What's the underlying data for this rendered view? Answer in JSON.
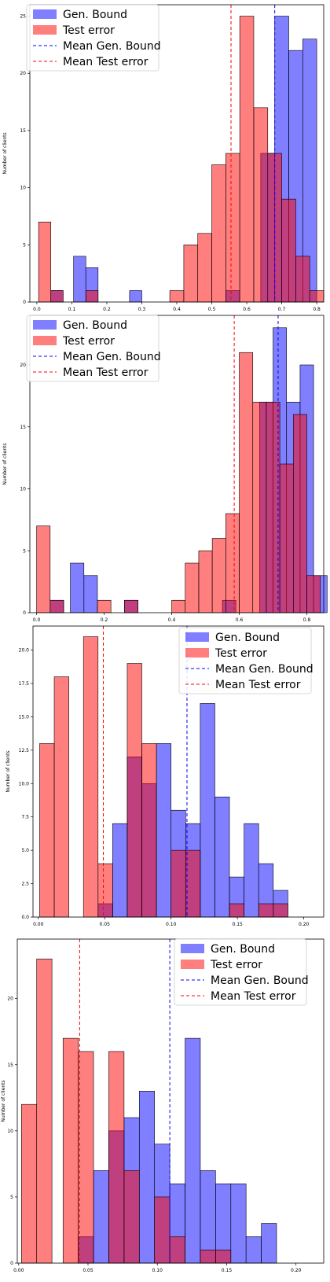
{
  "colors": {
    "gen_bound": "#0000ff",
    "test_error": "#ff0000",
    "overlap": "#aa2255"
  },
  "chart_data": [
    {
      "type": "histogram",
      "ylabel": "Number of clients",
      "xlim": [
        -0.02,
        0.82
      ],
      "ylim": [
        0,
        26
      ],
      "xticks": [
        0.0,
        0.1,
        0.2,
        0.3,
        0.4,
        0.5,
        0.6,
        0.7,
        0.8
      ],
      "xtick_labels": [
        "0.0",
        "0.1",
        "0.2",
        "0.3",
        "0.4",
        "0.5",
        "0.6",
        "0.7",
        "0.8"
      ],
      "yticks": [
        0,
        5,
        10,
        15,
        20,
        25
      ],
      "ytick_labels": [
        "0",
        "5",
        "10",
        "15",
        "20",
        "25"
      ],
      "legend": [
        "Gen. Bound",
        "Test error",
        "Mean Gen. Bound",
        "Mean Test error"
      ],
      "legend_position": "top-left",
      "series": [
        {
          "name": "Gen. Bound",
          "bins": [
            [
              0.04,
              0.075,
              1
            ],
            [
              0.105,
              0.14,
              4
            ],
            [
              0.14,
              0.175,
              3
            ],
            [
              0.265,
              0.3,
              1
            ],
            [
              0.54,
              0.58,
              1
            ],
            [
              0.64,
              0.68,
              13
            ],
            [
              0.68,
              0.72,
              25
            ],
            [
              0.72,
              0.76,
              22
            ],
            [
              0.76,
              0.8,
              23
            ]
          ]
        },
        {
          "name": "Test error",
          "bins": [
            [
              0.005,
              0.04,
              7
            ],
            [
              0.04,
              0.075,
              1
            ],
            [
              0.14,
              0.175,
              1
            ],
            [
              0.38,
              0.42,
              1
            ],
            [
              0.42,
              0.46,
              5
            ],
            [
              0.46,
              0.5,
              6
            ],
            [
              0.5,
              0.54,
              12
            ],
            [
              0.54,
              0.58,
              13
            ],
            [
              0.58,
              0.62,
              25
            ],
            [
              0.62,
              0.66,
              17
            ],
            [
              0.66,
              0.7,
              13
            ],
            [
              0.7,
              0.74,
              9
            ],
            [
              0.74,
              0.78,
              4
            ],
            [
              0.78,
              0.82,
              1
            ]
          ]
        }
      ],
      "mean_lines": {
        "Mean Gen. Bound": 0.68,
        "Mean Test error": 0.555
      }
    },
    {
      "type": "histogram",
      "ylabel": "Number of clients",
      "xlim": [
        -0.02,
        0.85
      ],
      "ylim": [
        0,
        24
      ],
      "xticks": [
        0.0,
        0.2,
        0.4,
        0.6,
        0.8
      ],
      "xtick_labels": [
        "0.0",
        "0.2",
        "0.4",
        "0.6",
        "0.8"
      ],
      "yticks": [
        0,
        5,
        10,
        15,
        20
      ],
      "ytick_labels": [
        "0",
        "5",
        "10",
        "15",
        "20"
      ],
      "legend": [
        "Gen. Bound",
        "Test error",
        "Mean Gen. Bound",
        "Mean Test error"
      ],
      "legend_position": "top-left",
      "series": [
        {
          "name": "Gen. Bound",
          "bins": [
            [
              0.04,
              0.08,
              1
            ],
            [
              0.1,
              0.14,
              4
            ],
            [
              0.14,
              0.18,
              3
            ],
            [
              0.26,
              0.3,
              1
            ],
            [
              0.55,
              0.59,
              1
            ],
            [
              0.66,
              0.7,
              17
            ],
            [
              0.7,
              0.74,
              23
            ],
            [
              0.74,
              0.78,
              17
            ],
            [
              0.78,
              0.82,
              20
            ],
            [
              0.82,
              0.86,
              3
            ]
          ]
        },
        {
          "name": "Test error",
          "bins": [
            [
              0.0,
              0.04,
              7
            ],
            [
              0.04,
              0.08,
              1
            ],
            [
              0.18,
              0.22,
              1
            ],
            [
              0.26,
              0.3,
              1
            ],
            [
              0.4,
              0.44,
              1
            ],
            [
              0.44,
              0.48,
              4
            ],
            [
              0.48,
              0.52,
              5
            ],
            [
              0.52,
              0.56,
              6
            ],
            [
              0.56,
              0.6,
              8
            ],
            [
              0.6,
              0.64,
              21
            ],
            [
              0.64,
              0.68,
              17
            ],
            [
              0.68,
              0.72,
              17
            ],
            [
              0.72,
              0.76,
              12
            ],
            [
              0.76,
              0.8,
              16
            ],
            [
              0.8,
              0.84,
              3
            ]
          ]
        }
      ],
      "mean_lines": {
        "Mean Gen. Bound": 0.715,
        "Mean Test error": 0.585
      }
    },
    {
      "type": "histogram",
      "ylabel": "Number of clients",
      "xlim": [
        -0.004,
        0.215
      ],
      "ylim": [
        0,
        21.8
      ],
      "xticks": [
        0.0,
        0.05,
        0.1,
        0.15,
        0.2
      ],
      "xtick_labels": [
        "0.00",
        "0.05",
        "0.10",
        "0.15",
        "0.20"
      ],
      "yticks": [
        0,
        2.5,
        5.0,
        7.5,
        10.0,
        12.5,
        15.0,
        17.5,
        20.0
      ],
      "ytick_labels": [
        "0.0",
        "2.5",
        "5.0",
        "7.5",
        "10.0",
        "12.5",
        "15.0",
        "17.5",
        "20.0"
      ],
      "legend": [
        "Gen. Bound",
        "Test error",
        "Mean Gen. Bound",
        "Mean Test error"
      ],
      "legend_position": "top-right",
      "series": [
        {
          "name": "Gen. Bound",
          "bins": [
            [
              0.045,
              0.056,
              1
            ],
            [
              0.056,
              0.067,
              7
            ],
            [
              0.067,
              0.078,
              12
            ],
            [
              0.078,
              0.089,
              10
            ],
            [
              0.089,
              0.1,
              13
            ],
            [
              0.1,
              0.111,
              8
            ],
            [
              0.111,
              0.122,
              7
            ],
            [
              0.122,
              0.133,
              16
            ],
            [
              0.133,
              0.144,
              9
            ],
            [
              0.144,
              0.155,
              3
            ],
            [
              0.155,
              0.166,
              7
            ],
            [
              0.166,
              0.177,
              4
            ],
            [
              0.177,
              0.188,
              2
            ]
          ]
        },
        {
          "name": "Test error",
          "bins": [
            [
              0.001,
              0.012,
              13
            ],
            [
              0.012,
              0.023,
              18
            ],
            [
              0.034,
              0.045,
              21
            ],
            [
              0.045,
              0.056,
              4
            ],
            [
              0.067,
              0.078,
              19
            ],
            [
              0.078,
              0.089,
              13
            ],
            [
              0.1,
              0.111,
              5
            ],
            [
              0.111,
              0.122,
              5
            ],
            [
              0.144,
              0.155,
              1
            ],
            [
              0.166,
              0.177,
              1
            ],
            [
              0.177,
              0.188,
              1
            ]
          ]
        }
      ],
      "mean_lines": {
        "Mean Gen. Bound": 0.112,
        "Mean Test error": 0.049
      }
    },
    {
      "type": "histogram",
      "ylabel": "Number of clients",
      "xlim": [
        -0.001,
        0.22
      ],
      "ylim": [
        0,
        24.5
      ],
      "xticks": [
        0.0,
        0.05,
        0.1,
        0.15,
        0.2
      ],
      "xtick_labels": [
        "0.00",
        "0.05",
        "0.10",
        "0.15",
        "0.20"
      ],
      "yticks": [
        0,
        5,
        10,
        15,
        20
      ],
      "ytick_labels": [
        "0",
        "5",
        "10",
        "15",
        "20"
      ],
      "legend": [
        "Gen. Bound",
        "Test error",
        "Mean Gen. Bound",
        "Mean Test error"
      ],
      "legend_position": "top-right",
      "series": [
        {
          "name": "Gen. Bound",
          "bins": [
            [
              0.043,
              0.054,
              2
            ],
            [
              0.054,
              0.065,
              7
            ],
            [
              0.065,
              0.076,
              10
            ],
            [
              0.076,
              0.087,
              11
            ],
            [
              0.087,
              0.098,
              13
            ],
            [
              0.098,
              0.109,
              9
            ],
            [
              0.109,
              0.12,
              6
            ],
            [
              0.12,
              0.131,
              17
            ],
            [
              0.131,
              0.142,
              7
            ],
            [
              0.142,
              0.153,
              6
            ],
            [
              0.153,
              0.164,
              6
            ],
            [
              0.164,
              0.175,
              2
            ],
            [
              0.175,
              0.186,
              3
            ]
          ]
        },
        {
          "name": "Test error",
          "bins": [
            [
              0.002,
              0.013,
              12
            ],
            [
              0.013,
              0.024,
              23
            ],
            [
              0.032,
              0.043,
              17
            ],
            [
              0.043,
              0.054,
              16
            ],
            [
              0.065,
              0.076,
              16
            ],
            [
              0.076,
              0.087,
              7
            ],
            [
              0.098,
              0.109,
              5
            ],
            [
              0.109,
              0.12,
              2
            ],
            [
              0.131,
              0.142,
              1
            ],
            [
              0.142,
              0.153,
              1
            ]
          ]
        }
      ],
      "mean_lines": {
        "Mean Gen. Bound": 0.109,
        "Mean Test error": 0.044
      }
    }
  ]
}
